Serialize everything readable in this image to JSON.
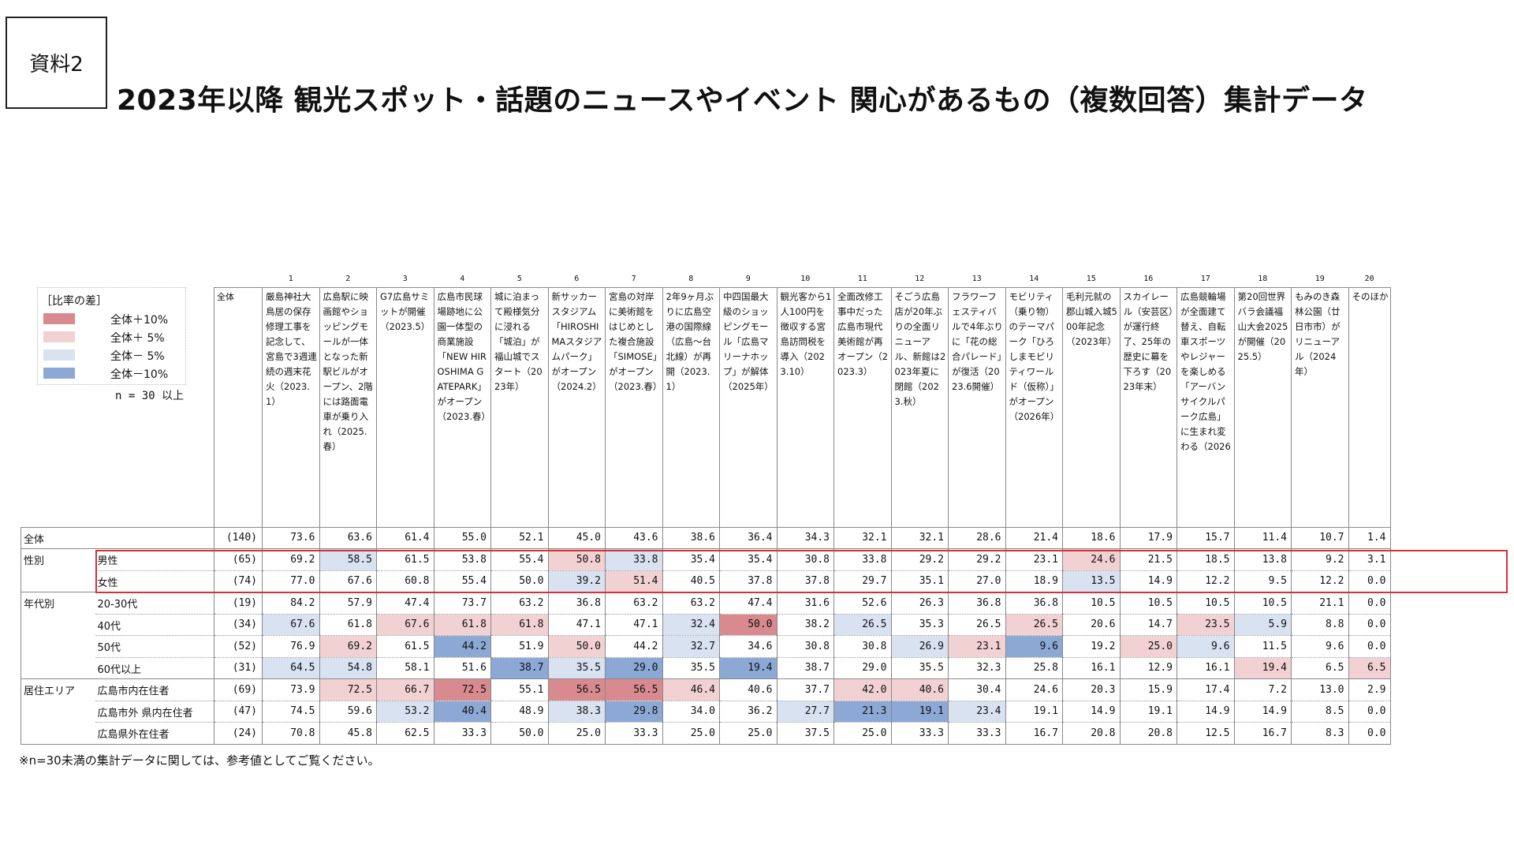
{
  "doc_label": "資料2",
  "title": "2023年以降 観光スポット・話題のニュースやイベント 関心があるもの（複数回答）集計データ",
  "legend": {
    "title": "［比率の差］",
    "items": [
      {
        "label": "全体＋10%",
        "color": "#d88a8f"
      },
      {
        "label": "全体＋ 5%",
        "color": "#f2d1d3"
      },
      {
        "label": "全体－ 5%",
        "color": "#d9e2f1"
      },
      {
        "label": "全体－10%",
        "color": "#8ca9d6"
      }
    ],
    "note": "n = 30 以上"
  },
  "overall_label": "全体",
  "col_numbers": [
    "1",
    "2",
    "3",
    "4",
    "5",
    "6",
    "7",
    "8",
    "9",
    "10",
    "11",
    "12",
    "13",
    "14",
    "15",
    "16",
    "17",
    "18",
    "19",
    "20"
  ],
  "columns": [
    "厳島神社大鳥居の保存修理工事を記念して、宮島で3週連続の週末花火（2023.1）",
    "広島駅に映画館やショッピングモールが一体となった新駅ビルがオープン、2階には路面電車が乗り入れ（2025.春）",
    "G7広島サミットが開催（2023.5）",
    "広島市民球場跡地に公園一体型の商業施設「NEW HIROSHIMA GATEPARK」がオープン（2023.春）",
    "城に泊まって殿様気分に浸れる「城泊」が福山城でスタート（2023年）",
    "新サッカースタジアム「HIROSHIMAスタジアムパーク」がオープン（2024.2）",
    "宮島の対岸に美術館をはじめとした複合施設「SIMOSE」がオープン（2023.春）",
    "2年9ヶ月ぶりに広島空港の国際線（広島～台北線）が再開（2023.1）",
    "中四国最大級のショッピングモール「広島マリーナホップ」が解体（2025年）",
    "観光客から1人100円を徴収する宮島訪問税を導入（2023.10）",
    "全面改修工事中だった広島市現代美術館が再オープン（2023.3）",
    "そごう広島店が20年ぶりの全面リニューアル、新館は2023年夏に閉館（2023.秋）",
    "フラワーフェスティバルで4年ぶりに「花の総合パレード」が復活（2023.6開催）",
    "モビリティ（乗り物）のテーマパーク「ひろしまモビリティワールド（仮称）」がオープン（2026年）",
    "毛利元就の郡山城入城500年記念（2023年）",
    "スカイレール（安芸区）が運行終了、25年の歴史に幕を下ろす（2023年末）",
    "広島競輪場が全面建て替え、自転車スポーツやレジャーを楽しめる「アーバンサイクルパーク広島」に生まれ変わる（2026",
    "第20回世界バラ会議福山大会2025が開催（2025.5）",
    "もみのき森林公園（廿日市市）がリニューアル（2024年）",
    "そのほか"
  ],
  "rows": [
    {
      "group": "全体",
      "sub": "",
      "n": "(140)",
      "values": [
        "73.6",
        "63.6",
        "61.4",
        "55.0",
        "52.1",
        "45.0",
        "43.6",
        "38.6",
        "36.4",
        "34.3",
        "32.1",
        "32.1",
        "28.6",
        "21.4",
        "18.6",
        "17.9",
        "15.7",
        "11.4",
        "10.7",
        "1.4"
      ],
      "levels": [
        0,
        0,
        0,
        0,
        0,
        0,
        0,
        0,
        0,
        0,
        0,
        0,
        0,
        0,
        0,
        0,
        0,
        0,
        0,
        0
      ]
    },
    {
      "group": "性別",
      "sub": "男性",
      "n": "(65)",
      "values": [
        "69.2",
        "58.5",
        "61.5",
        "53.8",
        "55.4",
        "50.8",
        "33.8",
        "35.4",
        "35.4",
        "30.8",
        "33.8",
        "29.2",
        "29.2",
        "23.1",
        "24.6",
        "21.5",
        "18.5",
        "13.8",
        "9.2",
        "3.1"
      ],
      "levels": [
        0,
        -1,
        0,
        0,
        0,
        1,
        -1,
        0,
        0,
        0,
        0,
        0,
        0,
        0,
        1,
        0,
        0,
        0,
        0,
        0
      ]
    },
    {
      "group": "",
      "sub": "女性",
      "n": "(74)",
      "values": [
        "77.0",
        "67.6",
        "60.8",
        "55.4",
        "50.0",
        "39.2",
        "51.4",
        "40.5",
        "37.8",
        "37.8",
        "29.7",
        "35.1",
        "27.0",
        "18.9",
        "13.5",
        "14.9",
        "12.2",
        "9.5",
        "12.2",
        "0.0"
      ],
      "levels": [
        0,
        0,
        0,
        0,
        0,
        -1,
        1,
        0,
        0,
        0,
        0,
        0,
        0,
        0,
        -1,
        0,
        0,
        0,
        0,
        0
      ]
    },
    {
      "group": "年代別",
      "sub": "20-30代",
      "n": "(19)",
      "values": [
        "84.2",
        "57.9",
        "47.4",
        "73.7",
        "63.2",
        "36.8",
        "63.2",
        "63.2",
        "47.4",
        "31.6",
        "52.6",
        "26.3",
        "36.8",
        "36.8",
        "10.5",
        "10.5",
        "10.5",
        "10.5",
        "21.1",
        "0.0"
      ],
      "levels": [
        0,
        0,
        0,
        0,
        0,
        0,
        0,
        0,
        0,
        0,
        0,
        0,
        0,
        0,
        0,
        0,
        0,
        0,
        0,
        0
      ]
    },
    {
      "group": "",
      "sub": "40代",
      "n": "(34)",
      "values": [
        "67.6",
        "61.8",
        "67.6",
        "61.8",
        "61.8",
        "47.1",
        "47.1",
        "32.4",
        "50.0",
        "38.2",
        "26.5",
        "35.3",
        "26.5",
        "26.5",
        "20.6",
        "14.7",
        "23.5",
        "5.9",
        "8.8",
        "0.0"
      ],
      "levels": [
        -1,
        0,
        1,
        1,
        1,
        0,
        0,
        -1,
        2,
        0,
        -1,
        0,
        0,
        1,
        0,
        0,
        1,
        -1,
        0,
        0
      ]
    },
    {
      "group": "",
      "sub": "50代",
      "n": "(52)",
      "values": [
        "76.9",
        "69.2",
        "61.5",
        "44.2",
        "51.9",
        "50.0",
        "44.2",
        "32.7",
        "34.6",
        "30.8",
        "30.8",
        "26.9",
        "23.1",
        "9.6",
        "19.2",
        "25.0",
        "9.6",
        "11.5",
        "9.6",
        "0.0"
      ],
      "levels": [
        0,
        1,
        0,
        -2,
        0,
        1,
        0,
        -1,
        0,
        0,
        0,
        -1,
        1,
        -2,
        0,
        1,
        -1,
        0,
        0,
        0
      ]
    },
    {
      "group": "",
      "sub": "60代以上",
      "n": "(31)",
      "values": [
        "64.5",
        "54.8",
        "58.1",
        "51.6",
        "38.7",
        "35.5",
        "29.0",
        "35.5",
        "19.4",
        "38.7",
        "29.0",
        "35.5",
        "32.3",
        "25.8",
        "16.1",
        "12.9",
        "16.1",
        "19.4",
        "6.5",
        "6.5"
      ],
      "levels": [
        -1,
        -1,
        0,
        0,
        -2,
        -1,
        -2,
        0,
        -2,
        0,
        0,
        0,
        0,
        0,
        0,
        0,
        0,
        1,
        0,
        1
      ]
    },
    {
      "group": "居住エリア",
      "sub": "広島市内在住者",
      "n": "(69)",
      "values": [
        "73.9",
        "72.5",
        "66.7",
        "72.5",
        "55.1",
        "56.5",
        "56.5",
        "46.4",
        "40.6",
        "37.7",
        "42.0",
        "40.6",
        "30.4",
        "24.6",
        "20.3",
        "15.9",
        "17.4",
        "7.2",
        "13.0",
        "2.9"
      ],
      "levels": [
        0,
        1,
        1,
        2,
        0,
        2,
        2,
        1,
        0,
        0,
        1,
        1,
        0,
        0,
        0,
        0,
        0,
        0,
        0,
        0
      ]
    },
    {
      "group": "",
      "sub": "広島市外 県内在住者",
      "n": "(47)",
      "values": [
        "74.5",
        "59.6",
        "53.2",
        "40.4",
        "48.9",
        "38.3",
        "29.8",
        "34.0",
        "36.2",
        "27.7",
        "21.3",
        "19.1",
        "23.4",
        "19.1",
        "14.9",
        "19.1",
        "14.9",
        "14.9",
        "8.5",
        "0.0"
      ],
      "levels": [
        0,
        0,
        -1,
        -2,
        0,
        -1,
        -2,
        0,
        0,
        -1,
        -2,
        -2,
        -1,
        0,
        0,
        0,
        0,
        0,
        0,
        0
      ]
    },
    {
      "group": "",
      "sub": "広島県外在住者",
      "n": "(24)",
      "values": [
        "70.8",
        "45.8",
        "62.5",
        "33.3",
        "50.0",
        "25.0",
        "33.3",
        "25.0",
        "25.0",
        "37.5",
        "25.0",
        "33.3",
        "33.3",
        "16.7",
        "20.8",
        "20.8",
        "12.5",
        "16.7",
        "8.3",
        "0.0"
      ],
      "levels": [
        0,
        0,
        0,
        0,
        0,
        0,
        0,
        0,
        0,
        0,
        0,
        0,
        0,
        0,
        0,
        0,
        0,
        0,
        0,
        0
      ]
    }
  ],
  "footnote": "※n=30未満の集計データに関しては、参考値としてご覧ください。"
}
